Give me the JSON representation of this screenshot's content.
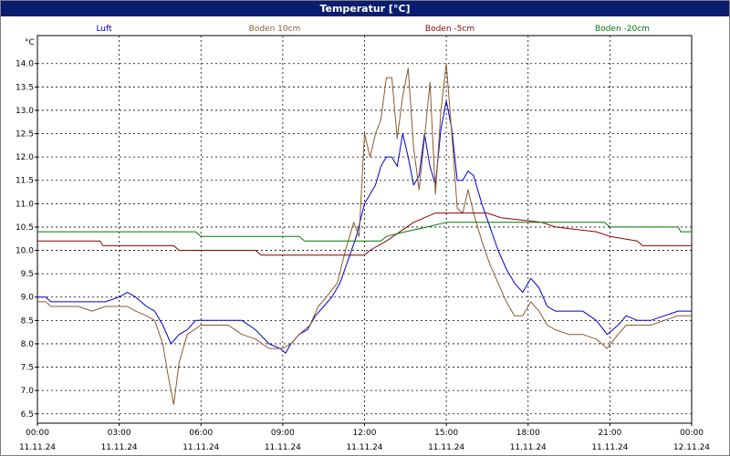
{
  "window": {
    "title": "Temperatur [°C]"
  },
  "chart_data": {
    "type": "line",
    "title": "Temperatur [°C]",
    "ylabel": "°C",
    "xlabel": "",
    "ylim": [
      6.5,
      14.0
    ],
    "xlim": [
      0,
      24
    ],
    "grid": true,
    "legend_position": "top",
    "x_ticks": [
      {
        "x": 0,
        "time": "00:00",
        "date": "11.11.24"
      },
      {
        "x": 3,
        "time": "03:00",
        "date": "11.11.24"
      },
      {
        "x": 6,
        "time": "06:00",
        "date": "11.11.24"
      },
      {
        "x": 9,
        "time": "09:00",
        "date": "11.11.24"
      },
      {
        "x": 12,
        "time": "12:00",
        "date": "11.11.24"
      },
      {
        "x": 15,
        "time": "15:00",
        "date": "11.11.24"
      },
      {
        "x": 18,
        "time": "18:00",
        "date": "11.11.24"
      },
      {
        "x": 21,
        "time": "21:00",
        "date": "11.11.24"
      },
      {
        "x": 24,
        "time": "00:00",
        "date": "12.11.24"
      }
    ],
    "y_ticks": [
      "6.5",
      "7.0",
      "7.5",
      "8.0",
      "8.5",
      "9.0",
      "9.5",
      "10.0",
      "10.5",
      "11.0",
      "11.5",
      "12.0",
      "12.5",
      "13.0",
      "13.5",
      "14.0"
    ],
    "series": [
      {
        "name": "Luft",
        "color": "#0000cc",
        "points": [
          [
            0,
            9.0
          ],
          [
            0.3,
            9.0
          ],
          [
            0.5,
            8.9
          ],
          [
            1,
            8.9
          ],
          [
            1.5,
            8.9
          ],
          [
            2,
            8.9
          ],
          [
            2.5,
            8.9
          ],
          [
            3,
            9.0
          ],
          [
            3.3,
            9.1
          ],
          [
            3.6,
            9.0
          ],
          [
            4,
            8.8
          ],
          [
            4.3,
            8.7
          ],
          [
            4.6,
            8.4
          ],
          [
            4.9,
            8.0
          ],
          [
            5.2,
            8.2
          ],
          [
            5.5,
            8.3
          ],
          [
            5.8,
            8.5
          ],
          [
            6.5,
            8.5
          ],
          [
            7,
            8.5
          ],
          [
            7.5,
            8.5
          ],
          [
            8,
            8.3
          ],
          [
            8.5,
            8.0
          ],
          [
            8.9,
            7.9
          ],
          [
            9.1,
            7.8
          ],
          [
            9.3,
            8.0
          ],
          [
            9.6,
            8.2
          ],
          [
            9.9,
            8.3
          ],
          [
            10.2,
            8.6
          ],
          [
            10.5,
            8.8
          ],
          [
            10.8,
            9.0
          ],
          [
            11.1,
            9.3
          ],
          [
            11.4,
            9.8
          ],
          [
            11.7,
            10.3
          ],
          [
            12,
            11.0
          ],
          [
            12.2,
            11.2
          ],
          [
            12.4,
            11.4
          ],
          [
            12.6,
            11.8
          ],
          [
            12.8,
            12.0
          ],
          [
            13,
            12.0
          ],
          [
            13.2,
            11.8
          ],
          [
            13.4,
            12.5
          ],
          [
            13.6,
            12.0
          ],
          [
            13.8,
            11.4
          ],
          [
            14,
            11.6
          ],
          [
            14.2,
            12.5
          ],
          [
            14.4,
            11.8
          ],
          [
            14.6,
            11.4
          ],
          [
            14.8,
            12.6
          ],
          [
            15,
            13.2
          ],
          [
            15.2,
            12.6
          ],
          [
            15.4,
            11.5
          ],
          [
            15.6,
            11.5
          ],
          [
            15.8,
            11.7
          ],
          [
            16,
            11.6
          ],
          [
            16.3,
            11.0
          ],
          [
            16.6,
            10.5
          ],
          [
            16.9,
            10.0
          ],
          [
            17.2,
            9.6
          ],
          [
            17.5,
            9.3
          ],
          [
            17.8,
            9.1
          ],
          [
            18.1,
            9.4
          ],
          [
            18.4,
            9.2
          ],
          [
            18.7,
            8.8
          ],
          [
            19,
            8.7
          ],
          [
            19.5,
            8.7
          ],
          [
            20,
            8.7
          ],
          [
            20.5,
            8.5
          ],
          [
            20.9,
            8.2
          ],
          [
            21.3,
            8.4
          ],
          [
            21.6,
            8.6
          ],
          [
            22,
            8.5
          ],
          [
            22.5,
            8.5
          ],
          [
            23,
            8.6
          ],
          [
            23.5,
            8.7
          ],
          [
            24,
            8.7
          ]
        ]
      },
      {
        "name": "Boden 10cm",
        "color": "#8b5a2b",
        "points": [
          [
            0,
            8.9
          ],
          [
            0.3,
            8.9
          ],
          [
            0.5,
            8.8
          ],
          [
            1,
            8.8
          ],
          [
            1.5,
            8.8
          ],
          [
            2,
            8.7
          ],
          [
            2.5,
            8.8
          ],
          [
            3,
            8.8
          ],
          [
            3.3,
            8.8
          ],
          [
            3.6,
            8.7
          ],
          [
            4,
            8.6
          ],
          [
            4.3,
            8.5
          ],
          [
            4.6,
            8.0
          ],
          [
            4.8,
            7.3
          ],
          [
            5,
            6.7
          ],
          [
            5.2,
            7.6
          ],
          [
            5.5,
            8.2
          ],
          [
            6,
            8.4
          ],
          [
            6.5,
            8.4
          ],
          [
            7,
            8.4
          ],
          [
            7.5,
            8.2
          ],
          [
            8,
            8.1
          ],
          [
            8.5,
            7.9
          ],
          [
            9,
            7.9
          ],
          [
            9.3,
            8.0
          ],
          [
            9.6,
            8.2
          ],
          [
            10,
            8.4
          ],
          [
            10.3,
            8.8
          ],
          [
            10.6,
            9.0
          ],
          [
            11,
            9.3
          ],
          [
            11.3,
            10.0
          ],
          [
            11.6,
            10.6
          ],
          [
            11.8,
            10.3
          ],
          [
            12,
            12.5
          ],
          [
            12.2,
            12.0
          ],
          [
            12.4,
            12.5
          ],
          [
            12.6,
            12.8
          ],
          [
            12.8,
            13.7
          ],
          [
            13,
            13.7
          ],
          [
            13.2,
            12.4
          ],
          [
            13.4,
            13.3
          ],
          [
            13.6,
            13.9
          ],
          [
            13.8,
            12.2
          ],
          [
            14,
            11.3
          ],
          [
            14.2,
            12.4
          ],
          [
            14.4,
            13.6
          ],
          [
            14.6,
            11.2
          ],
          [
            14.8,
            13.0
          ],
          [
            15,
            14.0
          ],
          [
            15.2,
            12.5
          ],
          [
            15.4,
            10.9
          ],
          [
            15.6,
            10.8
          ],
          [
            15.8,
            11.3
          ],
          [
            16,
            10.8
          ],
          [
            16.3,
            10.2
          ],
          [
            16.6,
            9.7
          ],
          [
            16.9,
            9.3
          ],
          [
            17.2,
            8.9
          ],
          [
            17.5,
            8.6
          ],
          [
            17.8,
            8.6
          ],
          [
            18.1,
            8.9
          ],
          [
            18.4,
            8.7
          ],
          [
            18.7,
            8.4
          ],
          [
            19,
            8.3
          ],
          [
            19.5,
            8.2
          ],
          [
            20,
            8.2
          ],
          [
            20.5,
            8.1
          ],
          [
            20.9,
            7.9
          ],
          [
            21.3,
            8.2
          ],
          [
            21.6,
            8.4
          ],
          [
            22,
            8.4
          ],
          [
            22.5,
            8.4
          ],
          [
            23,
            8.5
          ],
          [
            23.5,
            8.6
          ],
          [
            24,
            8.6
          ]
        ]
      },
      {
        "name": "Boden -5cm",
        "color": "#8b0000",
        "points": [
          [
            0,
            10.2
          ],
          [
            2.3,
            10.2
          ],
          [
            2.4,
            10.1
          ],
          [
            5,
            10.1
          ],
          [
            5.2,
            10.0
          ],
          [
            8,
            10.0
          ],
          [
            8.2,
            9.9
          ],
          [
            12.0,
            9.9
          ],
          [
            12.2,
            10.0
          ],
          [
            12.8,
            10.2
          ],
          [
            13.3,
            10.4
          ],
          [
            13.8,
            10.6
          ],
          [
            14.2,
            10.7
          ],
          [
            14.6,
            10.8
          ],
          [
            16.5,
            10.8
          ],
          [
            17,
            10.7
          ],
          [
            18.5,
            10.6
          ],
          [
            19,
            10.5
          ],
          [
            20.5,
            10.4
          ],
          [
            21,
            10.3
          ],
          [
            22,
            10.2
          ],
          [
            22.2,
            10.1
          ],
          [
            24,
            10.1
          ]
        ]
      },
      {
        "name": "Boden -20cm",
        "color": "#007800",
        "points": [
          [
            0,
            10.4
          ],
          [
            5.8,
            10.4
          ],
          [
            6,
            10.3
          ],
          [
            9.6,
            10.3
          ],
          [
            9.8,
            10.2
          ],
          [
            12.6,
            10.2
          ],
          [
            12.8,
            10.3
          ],
          [
            13.5,
            10.4
          ],
          [
            14.3,
            10.5
          ],
          [
            15,
            10.6
          ],
          [
            20.8,
            10.6
          ],
          [
            21,
            10.5
          ],
          [
            23.5,
            10.5
          ],
          [
            23.6,
            10.4
          ],
          [
            24,
            10.4
          ]
        ]
      }
    ]
  }
}
